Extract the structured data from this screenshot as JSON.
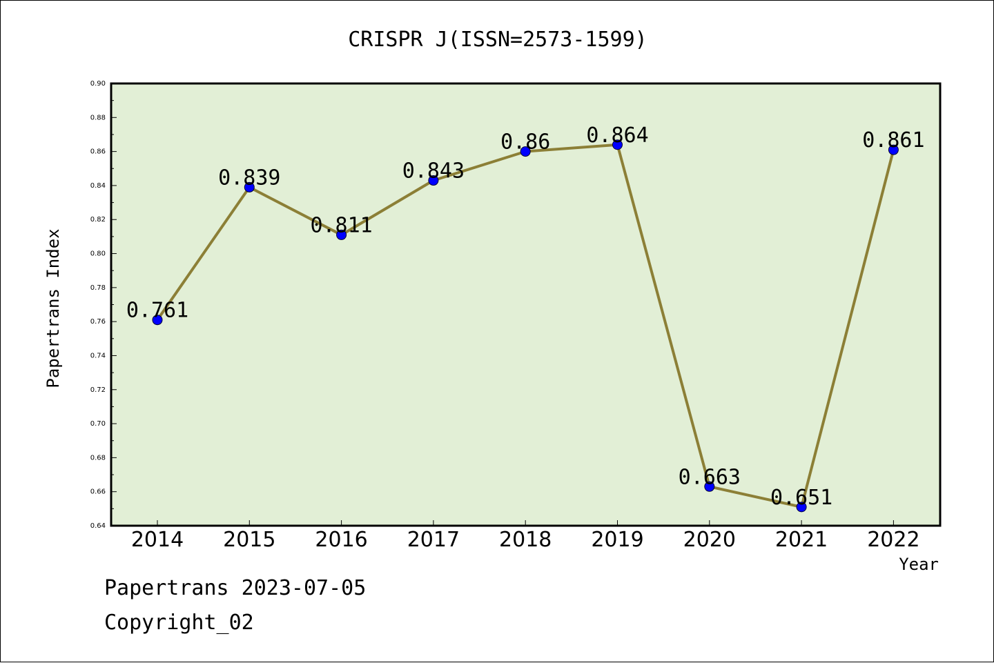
{
  "chart_data": {
    "type": "line",
    "title": "CRISPR J(ISSN=2573-1599)",
    "xlabel": "Year",
    "ylabel": "Papertrans Index",
    "categories": [
      "2014",
      "2015",
      "2016",
      "2017",
      "2018",
      "2019",
      "2020",
      "2021",
      "2022"
    ],
    "values": [
      0.761,
      0.839,
      0.811,
      0.843,
      0.86,
      0.864,
      0.663,
      0.651,
      0.861
    ],
    "data_labels": [
      "0.761",
      "0.839",
      "0.811",
      "0.843",
      "0.86",
      "0.864",
      "0.663",
      "0.651",
      "0.861"
    ],
    "ylim": [
      0.64,
      0.9
    ],
    "yticks": [
      "0.64",
      "0.66",
      "0.68",
      "0.70",
      "0.72",
      "0.74",
      "0.76",
      "0.78",
      "0.80",
      "0.82",
      "0.84",
      "0.86",
      "0.88",
      "0.90"
    ],
    "grid": false,
    "legend": "none",
    "colors": {
      "plot_bg": "#e2efd6",
      "line": "#8c7f36",
      "marker": "#0000ff"
    }
  },
  "footer": {
    "line1": "Papertrans 2023-07-05",
    "line2": "Copyright_02"
  }
}
